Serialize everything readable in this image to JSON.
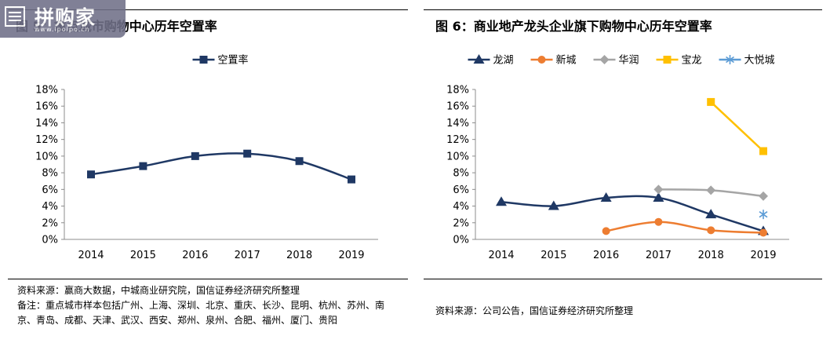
{
  "left": {
    "title": "图 5：重点城市购物中心历年空置率",
    "source": "资料来源：赢商大数据，中城商业研究院，国信证券经济研究所整理",
    "remark": "备注：重点城市样本包括广州、上海、深圳、北京、重庆、长沙、昆明、杭州、苏州、南京、青岛、成都、天津、武汉、西安、郑州、泉州、合肥、福州、厦门、贵阳"
  },
  "right": {
    "title": "图 6：商业地产龙头企业旗下购物中心历年空置率",
    "source": "资料来源：公司公告，国信证券经济研究所整理"
  },
  "watermark": {
    "name": "拼购家",
    "url": "www.ipoipo.cn"
  },
  "chart_data": [
    {
      "type": "line",
      "x": [
        "2014",
        "2015",
        "2016",
        "2017",
        "2018",
        "2019"
      ],
      "yticks": [
        "0%",
        "2%",
        "4%",
        "6%",
        "8%",
        "10%",
        "12%",
        "14%",
        "16%",
        "18%"
      ],
      "ylim": [
        0,
        18
      ],
      "legend_position": "top",
      "grid": false,
      "series": [
        {
          "name": "空置率",
          "color": "#1f3864",
          "marker": "square",
          "values": [
            7.8,
            8.8,
            10.0,
            10.3,
            9.4,
            7.2
          ]
        }
      ]
    },
    {
      "type": "line",
      "x": [
        "2014",
        "2015",
        "2016",
        "2017",
        "2018",
        "2019"
      ],
      "yticks": [
        "0%",
        "2%",
        "4%",
        "6%",
        "8%",
        "10%",
        "12%",
        "14%",
        "16%",
        "18%"
      ],
      "ylim": [
        0,
        18
      ],
      "legend_position": "top",
      "grid": false,
      "series": [
        {
          "name": "龙湖",
          "color": "#1f3864",
          "marker": "triangle",
          "values": [
            4.5,
            4.0,
            5.0,
            5.0,
            3.0,
            1.0
          ]
        },
        {
          "name": "新城",
          "color": "#ed7d31",
          "marker": "circle",
          "values": [
            null,
            null,
            1.0,
            2.1,
            1.1,
            0.8
          ]
        },
        {
          "name": "华润",
          "color": "#a5a5a5",
          "marker": "diamond",
          "values": [
            null,
            null,
            null,
            6.0,
            5.9,
            5.2
          ]
        },
        {
          "name": "宝龙",
          "color": "#ffc000",
          "marker": "square",
          "values": [
            null,
            null,
            null,
            null,
            16.5,
            10.6
          ]
        },
        {
          "name": "大悦城",
          "color": "#5b9bd5",
          "marker": "asterisk",
          "values": [
            null,
            null,
            null,
            null,
            null,
            3.0
          ]
        }
      ]
    }
  ]
}
